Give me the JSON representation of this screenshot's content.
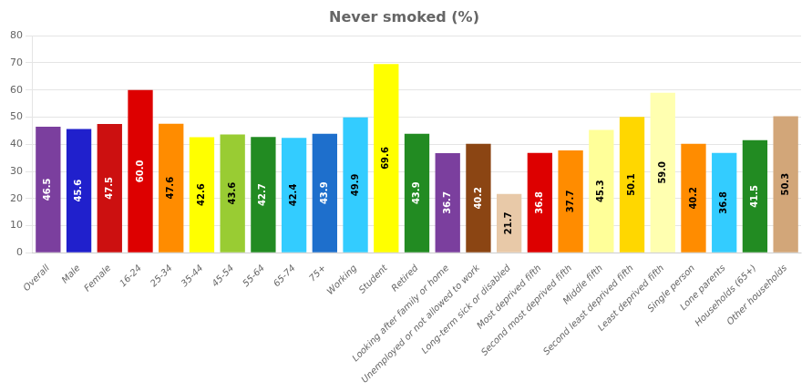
{
  "chart_data": {
    "type": "bar",
    "title": "Never smoked (%)",
    "categories": [
      "Overall",
      "Male",
      "Female",
      "16-24",
      "25-34",
      "35-44",
      "45-54",
      "55-64",
      "65-74",
      "75+",
      "Working",
      "Student",
      "Retired",
      "Looking after family or home",
      "Unemployed or not allowed to work",
      "Long-term sick or disabled",
      "Most deprived fifth",
      "Second most deprived fifth",
      "Middle fifth",
      "Second least deprived fifth",
      "Least deprived fifth",
      "Single person",
      "Lone parents",
      "Households (65+)",
      "Other households"
    ],
    "values": [
      46.5,
      45.6,
      47.5,
      60.0,
      47.6,
      42.6,
      43.6,
      42.7,
      42.4,
      43.9,
      49.9,
      69.6,
      43.9,
      36.7,
      40.2,
      21.7,
      36.8,
      37.7,
      45.3,
      50.1,
      59.0,
      40.2,
      36.8,
      41.5,
      50.3
    ],
    "value_labels": [
      "46.5",
      "45.6",
      "47.5",
      "60.0",
      "47.6",
      "42.6",
      "43.6",
      "42.7",
      "42.4",
      "43.9",
      "49.9",
      "69.6",
      "43.9",
      "36.7",
      "40.2",
      "21.7",
      "36.8",
      "37.7",
      "45.3",
      "50.1",
      "59.0",
      "40.2",
      "36.8",
      "41.5",
      "50.3"
    ],
    "colors": [
      "#7B3F9E",
      "#2020CC",
      "#CC1010",
      "#DD0000",
      "#FF8C00",
      "#FFFF00",
      "#99CC33",
      "#228B22",
      "#33CCFF",
      "#1E6FCC",
      "#33CCFF",
      "#FFFF00",
      "#228B22",
      "#7B3F9E",
      "#8B4513",
      "#E8C9A8",
      "#DD0000",
      "#FF8C00",
      "#FFFF99",
      "#FFD700",
      "#FFFFB0",
      "#FF8C00",
      "#33CCFF",
      "#228B22",
      "#D2A679"
    ],
    "ylim": [
      0,
      80
    ],
    "yticks": [
      0,
      10,
      20,
      30,
      40,
      50,
      60,
      70,
      80
    ],
    "grid": true,
    "data_labels": true
  }
}
